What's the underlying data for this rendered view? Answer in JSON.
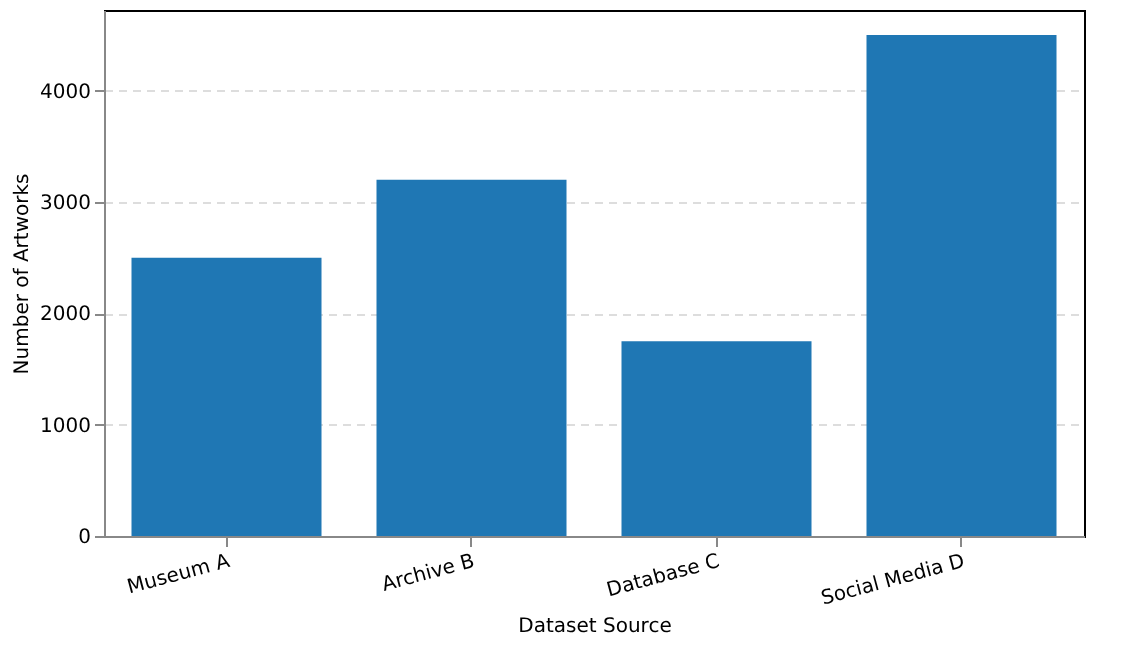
{
  "chart_data": {
    "type": "bar",
    "xlabel": "Dataset Source",
    "ylabel": "Number of Artworks",
    "categories": [
      "Museum A",
      "Archive B",
      "Database C",
      "Social Media D"
    ],
    "values": [
      2500,
      3200,
      1750,
      4500
    ],
    "color": "#1f77b4",
    "ylim": [
      0,
      4725
    ],
    "yticks": [
      0,
      1000,
      2000,
      3000,
      4000
    ],
    "grid": "y"
  }
}
